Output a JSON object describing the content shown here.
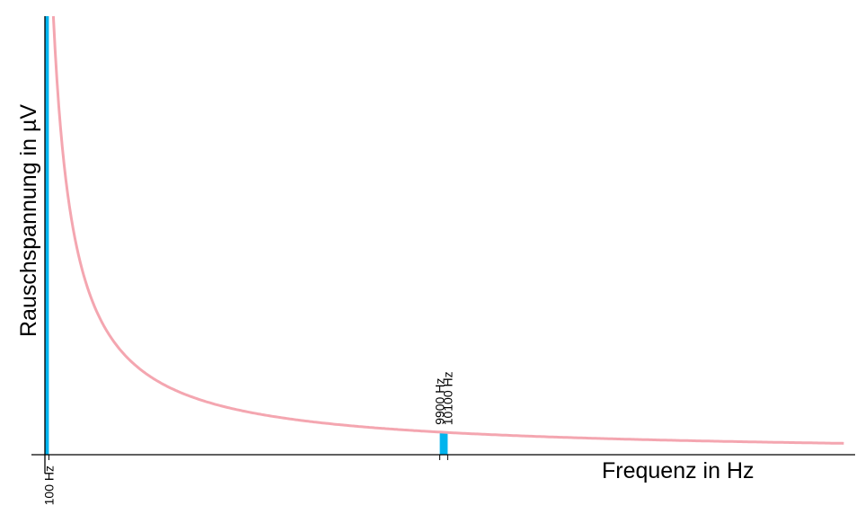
{
  "chart_data": {
    "type": "area",
    "title": "",
    "xlabel": "Frequenz in Hz",
    "ylabel": "Rauschspannung in µV",
    "curve": "1/f",
    "colors": {
      "curve": "#f4a6b0",
      "band": "#00b4ee",
      "axis": "#000000"
    },
    "bands": [
      {
        "from": 0,
        "to": 100
      },
      {
        "from": 9900,
        "to": 10100
      }
    ],
    "tick_labels": [
      {
        "value": 100,
        "label": "100 Hz",
        "position": "below"
      },
      {
        "value": 9900,
        "label": "9900 Hz",
        "position": "above"
      },
      {
        "value": 10100,
        "label": "10100 Hz",
        "position": "above"
      }
    ],
    "grid": false,
    "legend": "none"
  }
}
